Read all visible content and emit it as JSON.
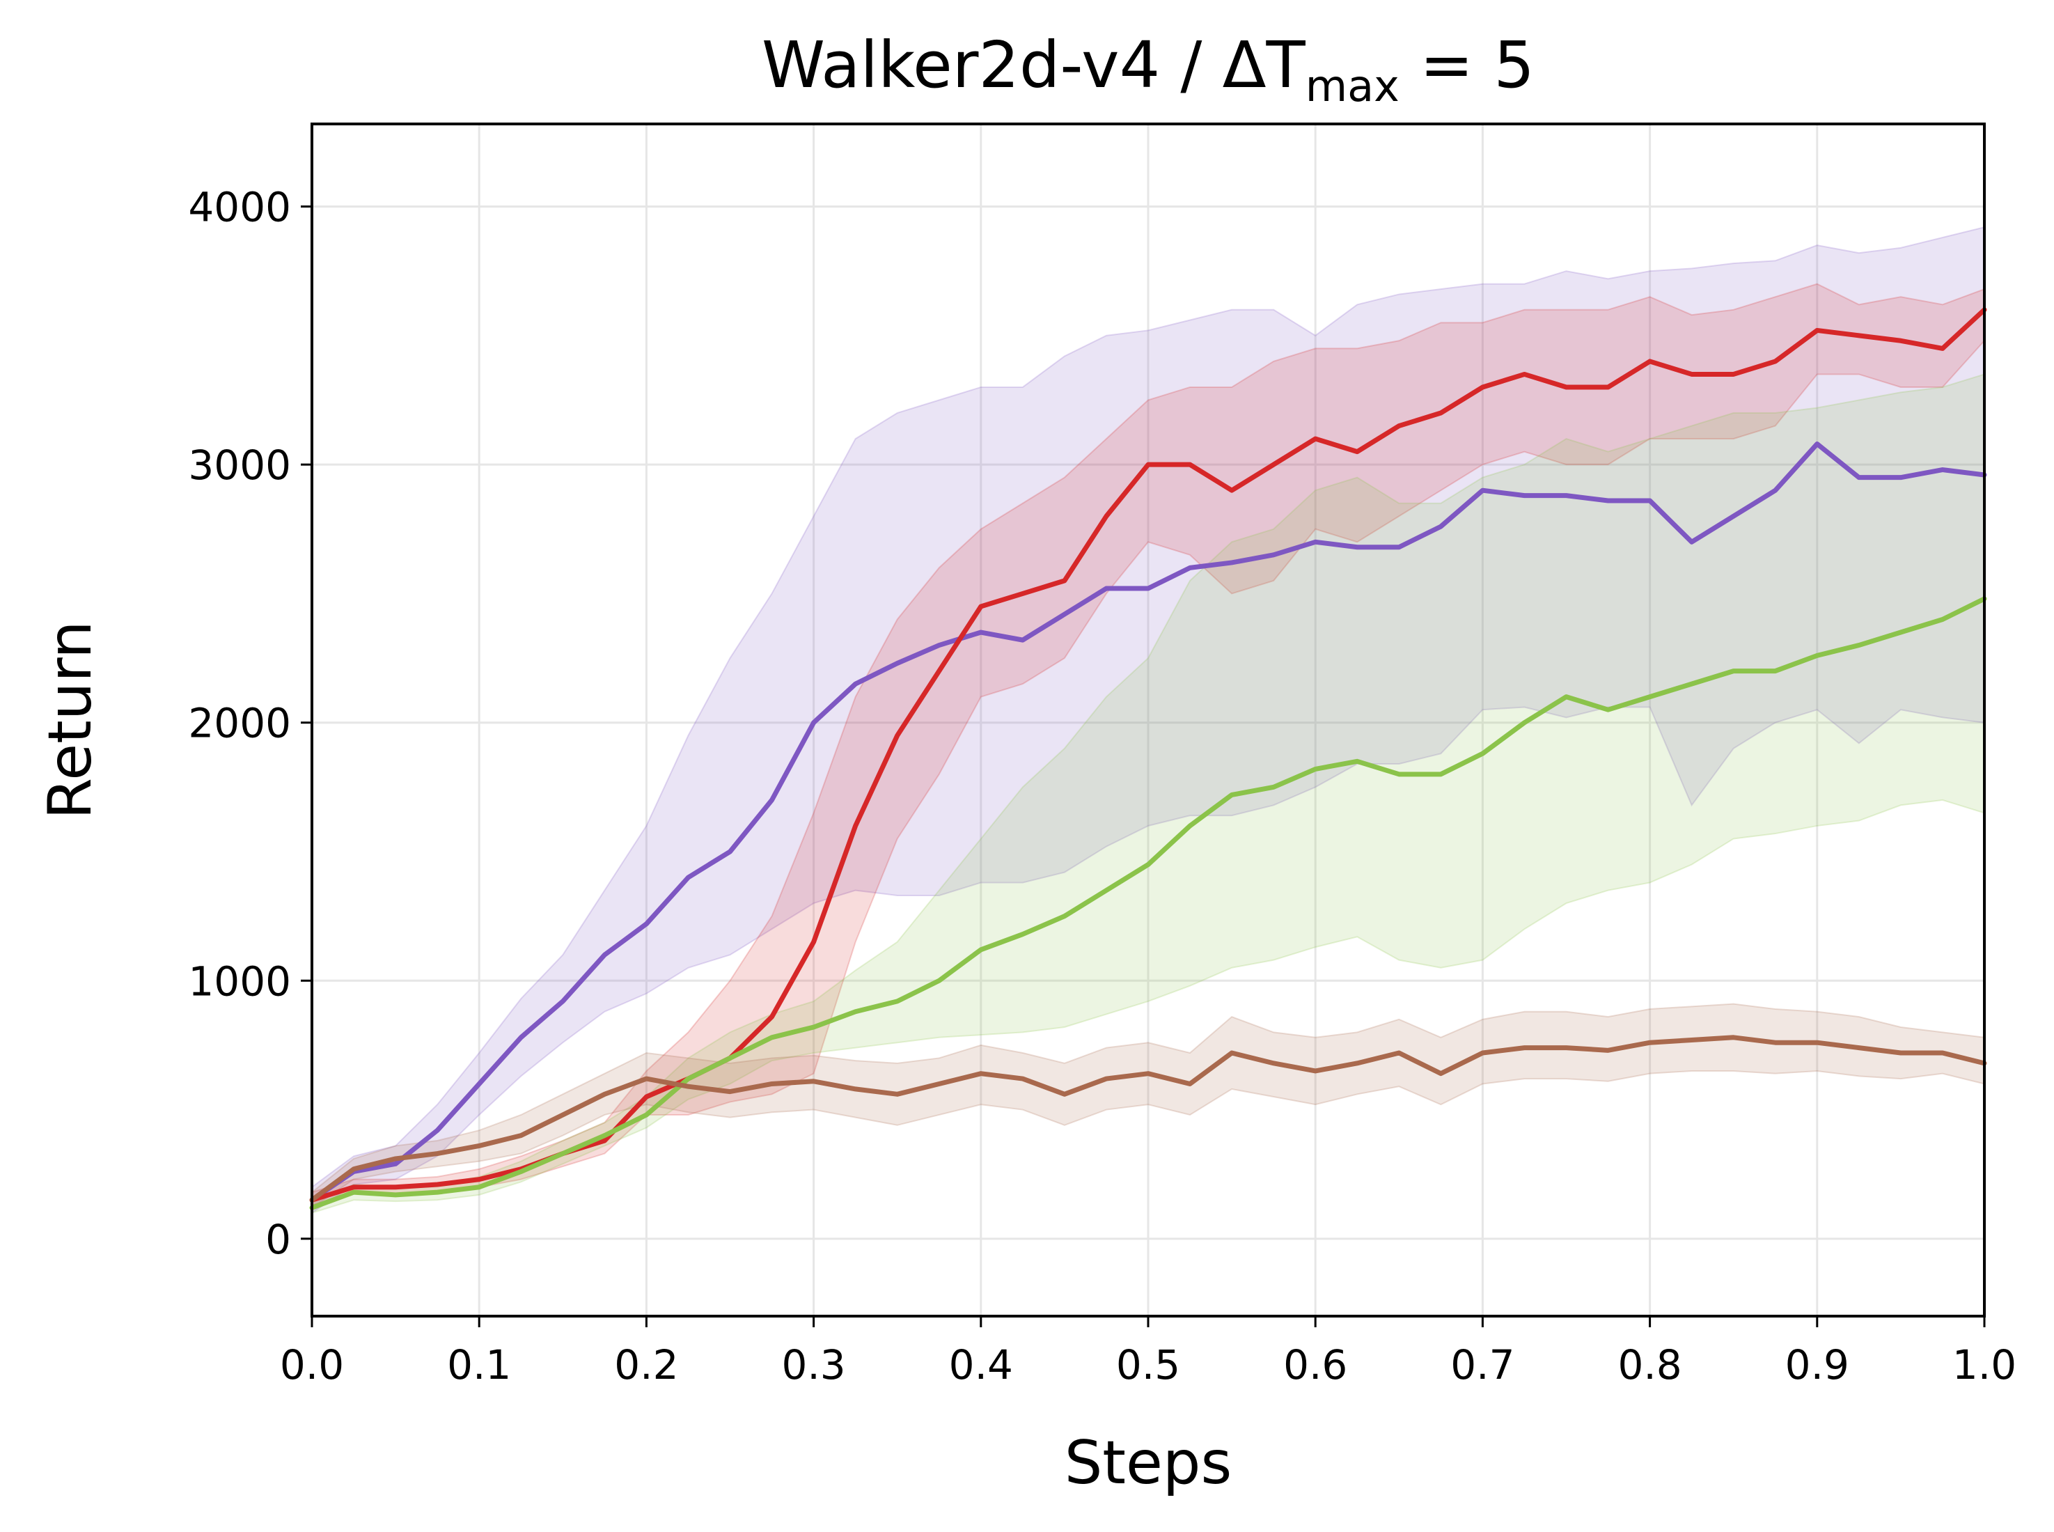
{
  "chart_data": {
    "type": "line",
    "title_main": "Walker2d-v4 / ΔT",
    "title_sub": "max",
    "title_eq": " = 5",
    "xlabel": "Steps",
    "ylabel": "Return",
    "xlim": [
      0,
      1
    ],
    "ylim": [
      -300,
      4320
    ],
    "grid": true,
    "legend": "none",
    "xticks": [
      "0.0",
      "0.1",
      "0.2",
      "0.3",
      "0.4",
      "0.5",
      "0.6",
      "0.7",
      "0.8",
      "0.9",
      "1.0"
    ],
    "yticks": [
      "0",
      "1000",
      "2000",
      "3000",
      "4000"
    ],
    "x": [
      0,
      0.025,
      0.05,
      0.075,
      0.1,
      0.125,
      0.15,
      0.175,
      0.2,
      0.225,
      0.25,
      0.275,
      0.3,
      0.325,
      0.35,
      0.375,
      0.4,
      0.425,
      0.45,
      0.475,
      0.5,
      0.525,
      0.55,
      0.575,
      0.6,
      0.625,
      0.65,
      0.675,
      0.7,
      0.725,
      0.75,
      0.775,
      0.8,
      0.825,
      0.85,
      0.875,
      0.9,
      0.925,
      0.95,
      0.975,
      1.0
    ],
    "series": [
      {
        "color": "#7e57c2",
        "values": [
          150,
          260,
          290,
          420,
          600,
          780,
          920,
          1100,
          1220,
          1400,
          1500,
          1700,
          2000,
          2150,
          2230,
          2300,
          2350,
          2320,
          2420,
          2520,
          2520,
          2600,
          2620,
          2650,
          2700,
          2680,
          2680,
          2760,
          2900,
          2880,
          2880,
          2860,
          2860,
          2700,
          2800,
          2900,
          3080,
          2950,
          2950,
          2980,
          2960
        ],
        "upper": [
          200,
          320,
          360,
          520,
          720,
          930,
          1100,
          1350,
          1600,
          1950,
          2250,
          2500,
          2800,
          3100,
          3200,
          3250,
          3300,
          3300,
          3420,
          3500,
          3520,
          3560,
          3600,
          3600,
          3500,
          3620,
          3660,
          3680,
          3700,
          3700,
          3750,
          3720,
          3750,
          3760,
          3780,
          3790,
          3850,
          3820,
          3840,
          3880,
          3920
        ],
        "lower": [
          100,
          210,
          230,
          320,
          480,
          630,
          760,
          880,
          950,
          1050,
          1100,
          1200,
          1300,
          1350,
          1330,
          1330,
          1380,
          1380,
          1420,
          1520,
          1600,
          1640,
          1640,
          1680,
          1750,
          1840,
          1840,
          1880,
          2050,
          2060,
          2020,
          2060,
          2060,
          1680,
          1900,
          2000,
          2050,
          1920,
          2050,
          2020,
          2000
        ]
      },
      {
        "color": "#d62728",
        "values": [
          150,
          200,
          200,
          210,
          230,
          270,
          330,
          380,
          550,
          620,
          700,
          860,
          1150,
          1600,
          1950,
          2200,
          2450,
          2500,
          2550,
          2800,
          3000,
          3000,
          2900,
          3000,
          3100,
          3050,
          3150,
          3200,
          3300,
          3350,
          3300,
          3300,
          3400,
          3350,
          3350,
          3400,
          3520,
          3500,
          3480,
          3450,
          3600
        ],
        "upper": [
          180,
          230,
          230,
          240,
          270,
          320,
          380,
          450,
          650,
          800,
          1000,
          1250,
          1650,
          2100,
          2400,
          2600,
          2750,
          2850,
          2950,
          3100,
          3250,
          3300,
          3300,
          3400,
          3450,
          3450,
          3480,
          3550,
          3550,
          3600,
          3600,
          3600,
          3650,
          3580,
          3600,
          3650,
          3700,
          3620,
          3650,
          3620,
          3680
        ],
        "lower": [
          130,
          175,
          175,
          180,
          200,
          230,
          280,
          330,
          480,
          480,
          530,
          560,
          640,
          1150,
          1550,
          1800,
          2100,
          2150,
          2250,
          2500,
          2700,
          2650,
          2500,
          2550,
          2750,
          2700,
          2800,
          2900,
          3000,
          3050,
          3000,
          3000,
          3100,
          3100,
          3100,
          3150,
          3350,
          3350,
          3300,
          3300,
          3480
        ]
      },
      {
        "color": "#8bc34a",
        "values": [
          120,
          180,
          170,
          180,
          200,
          260,
          330,
          400,
          480,
          620,
          700,
          780,
          820,
          880,
          920,
          1000,
          1120,
          1180,
          1250,
          1350,
          1450,
          1600,
          1720,
          1750,
          1820,
          1850,
          1800,
          1800,
          1880,
          2000,
          2100,
          2050,
          2100,
          2150,
          2200,
          2200,
          2260,
          2300,
          2350,
          2400,
          2480
        ],
        "upper": [
          140,
          210,
          200,
          210,
          240,
          300,
          380,
          450,
          550,
          700,
          800,
          870,
          920,
          1040,
          1150,
          1350,
          1550,
          1750,
          1900,
          2100,
          2250,
          2550,
          2700,
          2750,
          2900,
          2950,
          2850,
          2850,
          2950,
          3000,
          3100,
          3050,
          3100,
          3150,
          3200,
          3200,
          3220,
          3250,
          3280,
          3300,
          3350
        ],
        "lower": [
          100,
          150,
          145,
          150,
          170,
          220,
          290,
          360,
          430,
          540,
          600,
          690,
          720,
          740,
          760,
          780,
          790,
          800,
          820,
          870,
          920,
          980,
          1050,
          1080,
          1130,
          1170,
          1080,
          1050,
          1080,
          1200,
          1300,
          1350,
          1380,
          1450,
          1550,
          1570,
          1600,
          1620,
          1680,
          1700,
          1650
        ]
      },
      {
        "color": "#a9694d",
        "values": [
          150,
          270,
          310,
          330,
          360,
          400,
          480,
          560,
          620,
          590,
          570,
          600,
          610,
          580,
          560,
          600,
          640,
          620,
          560,
          620,
          640,
          600,
          720,
          680,
          650,
          680,
          720,
          640,
          720,
          740,
          740,
          730,
          760,
          770,
          780,
          760,
          760,
          740,
          720,
          720,
          680
        ],
        "upper": [
          180,
          310,
          360,
          380,
          420,
          480,
          560,
          640,
          720,
          700,
          680,
          700,
          710,
          690,
          680,
          700,
          750,
          720,
          680,
          740,
          760,
          720,
          860,
          800,
          780,
          800,
          850,
          780,
          850,
          880,
          880,
          860,
          890,
          900,
          910,
          890,
          880,
          860,
          820,
          800,
          780
        ],
        "lower": [
          120,
          230,
          260,
          280,
          300,
          330,
          400,
          480,
          520,
          490,
          470,
          490,
          500,
          470,
          440,
          480,
          520,
          500,
          440,
          500,
          520,
          480,
          580,
          550,
          520,
          560,
          590,
          520,
          600,
          620,
          620,
          610,
          640,
          650,
          650,
          640,
          650,
          630,
          620,
          640,
          600
        ]
      }
    ]
  }
}
